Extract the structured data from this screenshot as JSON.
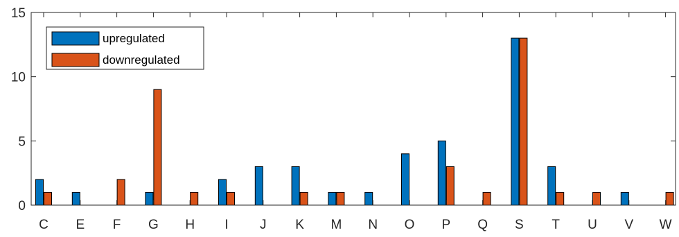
{
  "chart_data": {
    "type": "bar",
    "categories": [
      "C",
      "E",
      "F",
      "G",
      "H",
      "I",
      "J",
      "K",
      "M",
      "N",
      "O",
      "P",
      "Q",
      "S",
      "T",
      "U",
      "V",
      "W"
    ],
    "series": [
      {
        "name": "upregulated",
        "color": "#0072BD",
        "values": [
          2,
          1,
          0,
          1,
          0,
          2,
          3,
          3,
          1,
          1,
          4,
          5,
          0,
          13,
          3,
          0,
          1,
          0
        ]
      },
      {
        "name": "downregulated",
        "color": "#D95319",
        "values": [
          1,
          0,
          2,
          9,
          1,
          1,
          0,
          1,
          1,
          0,
          0,
          3,
          1,
          13,
          1,
          1,
          0,
          1
        ]
      }
    ],
    "title": "",
    "xlabel": "",
    "ylabel": "",
    "ylim": [
      0,
      15
    ],
    "yticks": [
      0,
      5,
      10,
      15
    ],
    "grid": false,
    "legend_position": "top-left"
  }
}
